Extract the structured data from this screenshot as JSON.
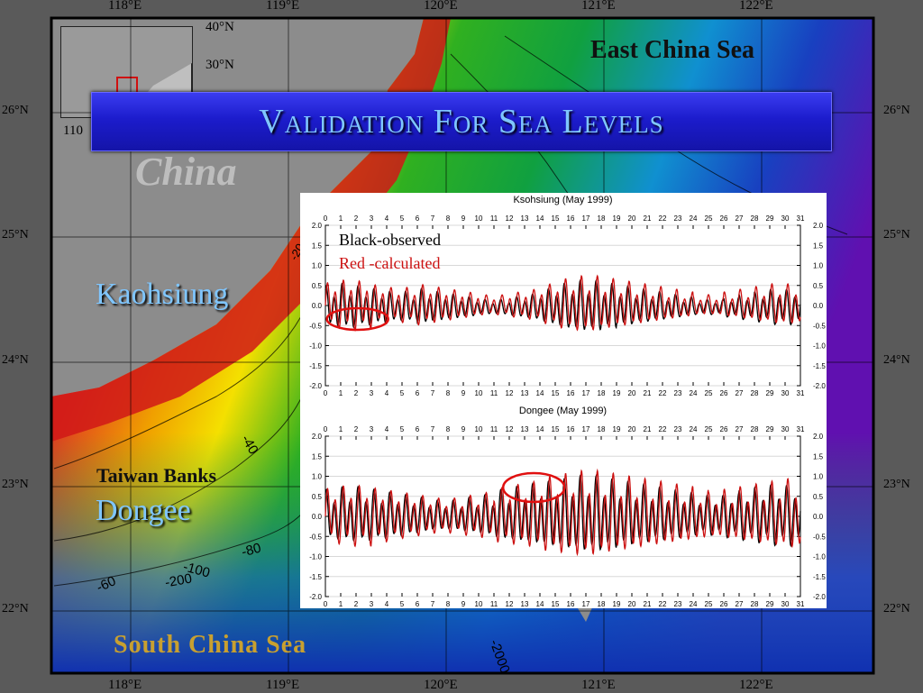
{
  "slide": {
    "title": "Validation For Sea Levels",
    "station_labels": [
      "Kaohsiung",
      "Dongee"
    ]
  },
  "map": {
    "top_lon_labels": [
      "118°E",
      "119°E",
      "120°E",
      "121°E",
      "122°E"
    ],
    "bottom_lon_labels": [
      "118°E",
      "119°E",
      "120°E",
      "121°E",
      "122°E"
    ],
    "left_lat_labels": [
      "26°N",
      "25°N",
      "24°N",
      "23°N",
      "22°N"
    ],
    "right_lat_labels": [
      "26°N",
      "25°N",
      "24°N",
      "23°N",
      "22°N"
    ],
    "inset_labels": [
      "40°N",
      "30°N",
      "110"
    ],
    "place_labels": {
      "east_china_sea": "East China Sea",
      "china": "China",
      "taiwan_banks": "Taiwan Banks",
      "south_china_sea": "South China Sea"
    },
    "contour_labels": [
      "-20",
      "-40",
      "-80",
      "-60",
      "-100",
      "-200",
      "-2000"
    ],
    "colors": {
      "land": "#8c8c8c",
      "shallow": "#c81010",
      "mid": "#f4e000",
      "deep_shelf": "#10b020",
      "deep": "#1030c0",
      "abyss": "#6010b0"
    }
  },
  "legend": {
    "observed": "Black-observed",
    "calculated": "Red -calculated",
    "observed_color": "#000000",
    "calculated_color": "#cc1111"
  },
  "chart_data": [
    {
      "type": "line",
      "title": "Ksohsiung (May 1999)",
      "x_ticks": [
        "0",
        "1",
        "2",
        "3",
        "4",
        "5",
        "6",
        "7",
        "8",
        "9",
        "10",
        "11",
        "12",
        "13",
        "14",
        "15",
        "16",
        "17",
        "18",
        "19",
        "20",
        "21",
        "22",
        "23",
        "24",
        "25",
        "26",
        "27",
        "28",
        "29",
        "30",
        "31"
      ],
      "y_ticks": [
        "2.0",
        "1.5",
        "1.0",
        "0.5",
        "0.0",
        "-0.5",
        "-1.0",
        "-1.5",
        "-2.0"
      ],
      "y_ticks_right": [
        "2.0",
        "1.5",
        "1.0",
        "0.5",
        "0.0",
        "-0.5",
        "-1.0",
        "-1.5",
        "-2.0"
      ],
      "xlim": [
        0,
        31
      ],
      "ylim": [
        -2.0,
        2.0
      ],
      "grid": true,
      "series": [
        {
          "name": "Black-observed",
          "color": "#000000",
          "amplitude_by_day": [
            0.4,
            0.45,
            0.4,
            0.35,
            0.3,
            0.3,
            0.35,
            0.3,
            0.25,
            0.2,
            0.15,
            0.15,
            0.2,
            0.25,
            0.35,
            0.45,
            0.5,
            0.5,
            0.45,
            0.4,
            0.35,
            0.3,
            0.25,
            0.2,
            0.15,
            0.15,
            0.2,
            0.25,
            0.3,
            0.35,
            0.35,
            0.35
          ],
          "offset": -0.05
        },
        {
          "name": "Red -calculated",
          "color": "#cc1111",
          "amplitude_by_day": [
            0.45,
            0.5,
            0.48,
            0.4,
            0.35,
            0.35,
            0.4,
            0.35,
            0.3,
            0.25,
            0.2,
            0.2,
            0.25,
            0.3,
            0.4,
            0.5,
            0.55,
            0.55,
            0.5,
            0.45,
            0.4,
            0.35,
            0.3,
            0.25,
            0.2,
            0.2,
            0.25,
            0.3,
            0.35,
            0.4,
            0.4,
            0.4
          ],
          "offset": 0.0
        }
      ],
      "annotation": "ellipse around days 0.6–3.6 near -0.35"
    },
    {
      "type": "line",
      "title": "Dongee (May 1999)",
      "x_ticks": [
        "0",
        "1",
        "2",
        "3",
        "4",
        "5",
        "6",
        "7",
        "8",
        "9",
        "10",
        "11",
        "12",
        "13",
        "14",
        "15",
        "16",
        "17",
        "18",
        "19",
        "20",
        "21",
        "22",
        "23",
        "24",
        "25",
        "26",
        "27",
        "28",
        "29",
        "30",
        "31"
      ],
      "y_ticks": [
        "2.0",
        "1.5",
        "1.0",
        "0.5",
        "0.0",
        "-0.5",
        "-1.0",
        "-1.5",
        "-2.0"
      ],
      "y_ticks_right": [
        "2.0",
        "1.5",
        "1.0",
        "0.5",
        "0.0",
        "-0.5",
        "-1.0",
        "-1.5",
        "-2.0"
      ],
      "xlim": [
        0,
        31
      ],
      "ylim": [
        -2.0,
        2.0
      ],
      "grid": true,
      "series": [
        {
          "name": "Black-observed",
          "color": "#000000",
          "amplitude_by_day": [
            0.5,
            0.55,
            0.55,
            0.5,
            0.45,
            0.4,
            0.35,
            0.3,
            0.3,
            0.35,
            0.4,
            0.5,
            0.55,
            0.6,
            0.65,
            0.7,
            0.75,
            0.75,
            0.7,
            0.65,
            0.6,
            0.55,
            0.5,
            0.45,
            0.4,
            0.4,
            0.45,
            0.5,
            0.55,
            0.6,
            0.6,
            0.6
          ],
          "offset": 0.0
        },
        {
          "name": "Red -calculated",
          "color": "#cc1111",
          "amplitude_by_day": [
            0.55,
            0.6,
            0.6,
            0.55,
            0.5,
            0.45,
            0.4,
            0.35,
            0.35,
            0.4,
            0.45,
            0.55,
            0.6,
            0.65,
            0.75,
            0.8,
            0.85,
            0.85,
            0.8,
            0.75,
            0.7,
            0.65,
            0.6,
            0.55,
            0.5,
            0.45,
            0.5,
            0.55,
            0.6,
            0.65,
            0.7,
            0.7
          ],
          "offset": 0.0
        }
      ],
      "annotation": "ellipse around days 11.5–15.5 near 0.45"
    }
  ]
}
